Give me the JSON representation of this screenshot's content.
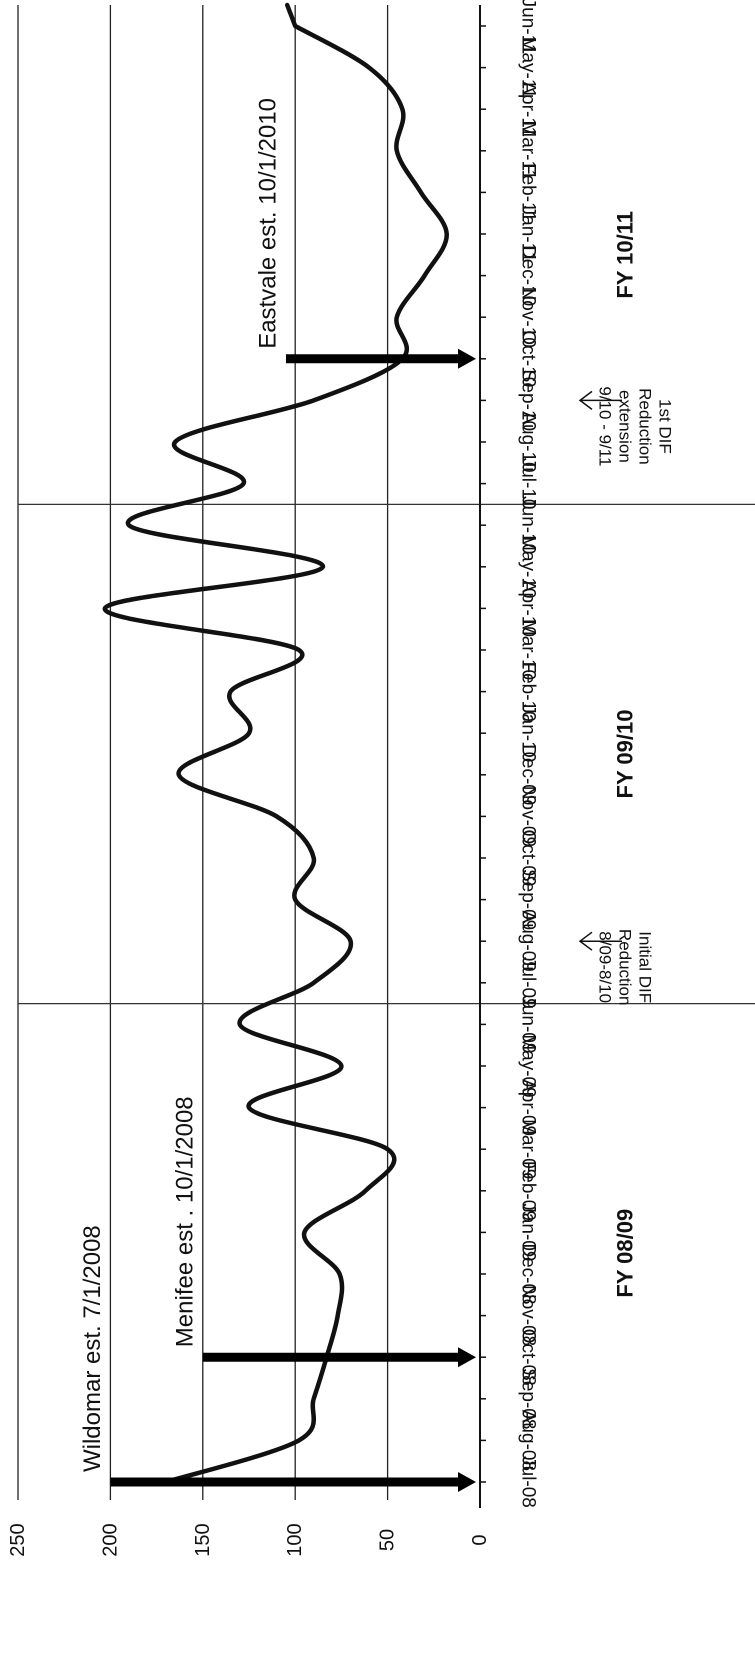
{
  "chart_data": {
    "type": "line",
    "orientation": "rotated-90",
    "title": "",
    "xlabel": "",
    "ylabel": "",
    "ylim": [
      0,
      250
    ],
    "yticks": [
      0,
      50,
      100,
      150,
      200,
      250
    ],
    "grid": true,
    "categories": [
      "Jul-08",
      "Aug-08",
      "Sep-08",
      "Oct-08",
      "Nov-08",
      "Dec-08",
      "Jan-09",
      "Feb-09",
      "Mar-09",
      "Apr-09",
      "May-09",
      "Jun-09",
      "Jul-09",
      "Aug-09",
      "Sep-09",
      "Oct-09",
      "Nov-09",
      "Dec-09",
      "Jan-10",
      "Feb-10",
      "Mar-10",
      "Apr-10",
      "May-10",
      "Jun-10",
      "Jul-10",
      "Aug-10",
      "Sep-10",
      "Oct-10",
      "Nov-10",
      "Dec-10",
      "Jan-11",
      "Feb-11",
      "Mar-11",
      "Apr-11",
      "May-11",
      "Jun-11"
    ],
    "series": [
      {
        "name": "",
        "values": [
          170,
          98,
          90,
          83,
          77,
          76,
          95,
          62,
          50,
          125,
          75,
          130,
          90,
          70,
          100,
          90,
          110,
          163,
          125,
          135,
          98,
          203,
          85,
          190,
          128,
          165,
          90,
          42,
          45,
          30,
          18,
          32,
          45,
          42,
          60,
          100
        ]
      }
    ],
    "fiscal_years": [
      {
        "label": "FY 08/09",
        "start": 0,
        "end": 11
      },
      {
        "label": "FY 09/10",
        "start": 12,
        "end": 23
      },
      {
        "label": "FY 10/11",
        "start": 24,
        "end": 35
      }
    ],
    "annotations": [
      {
        "text": "Wildomar  est. 7/1/2008",
        "month_index": 0,
        "arrow_from": 200,
        "arrow_to": 0
      },
      {
        "text": "Menifee  est . 10/1/2008",
        "month_index": 3,
        "arrow_from": 150,
        "arrow_to": 0
      },
      {
        "text": "Eastvale est. 10/1/2010",
        "month_index": 27,
        "arrow_from": 105,
        "arrow_to": 0
      }
    ],
    "notes": [
      {
        "lines": [
          "Initial DIF",
          "Reduction",
          "8/09-8/10"
        ],
        "month_index": 13
      },
      {
        "lines": [
          "1st DIF",
          "Reduction",
          "extension",
          "9/10 - 9/11"
        ],
        "month_index": 26
      }
    ]
  }
}
